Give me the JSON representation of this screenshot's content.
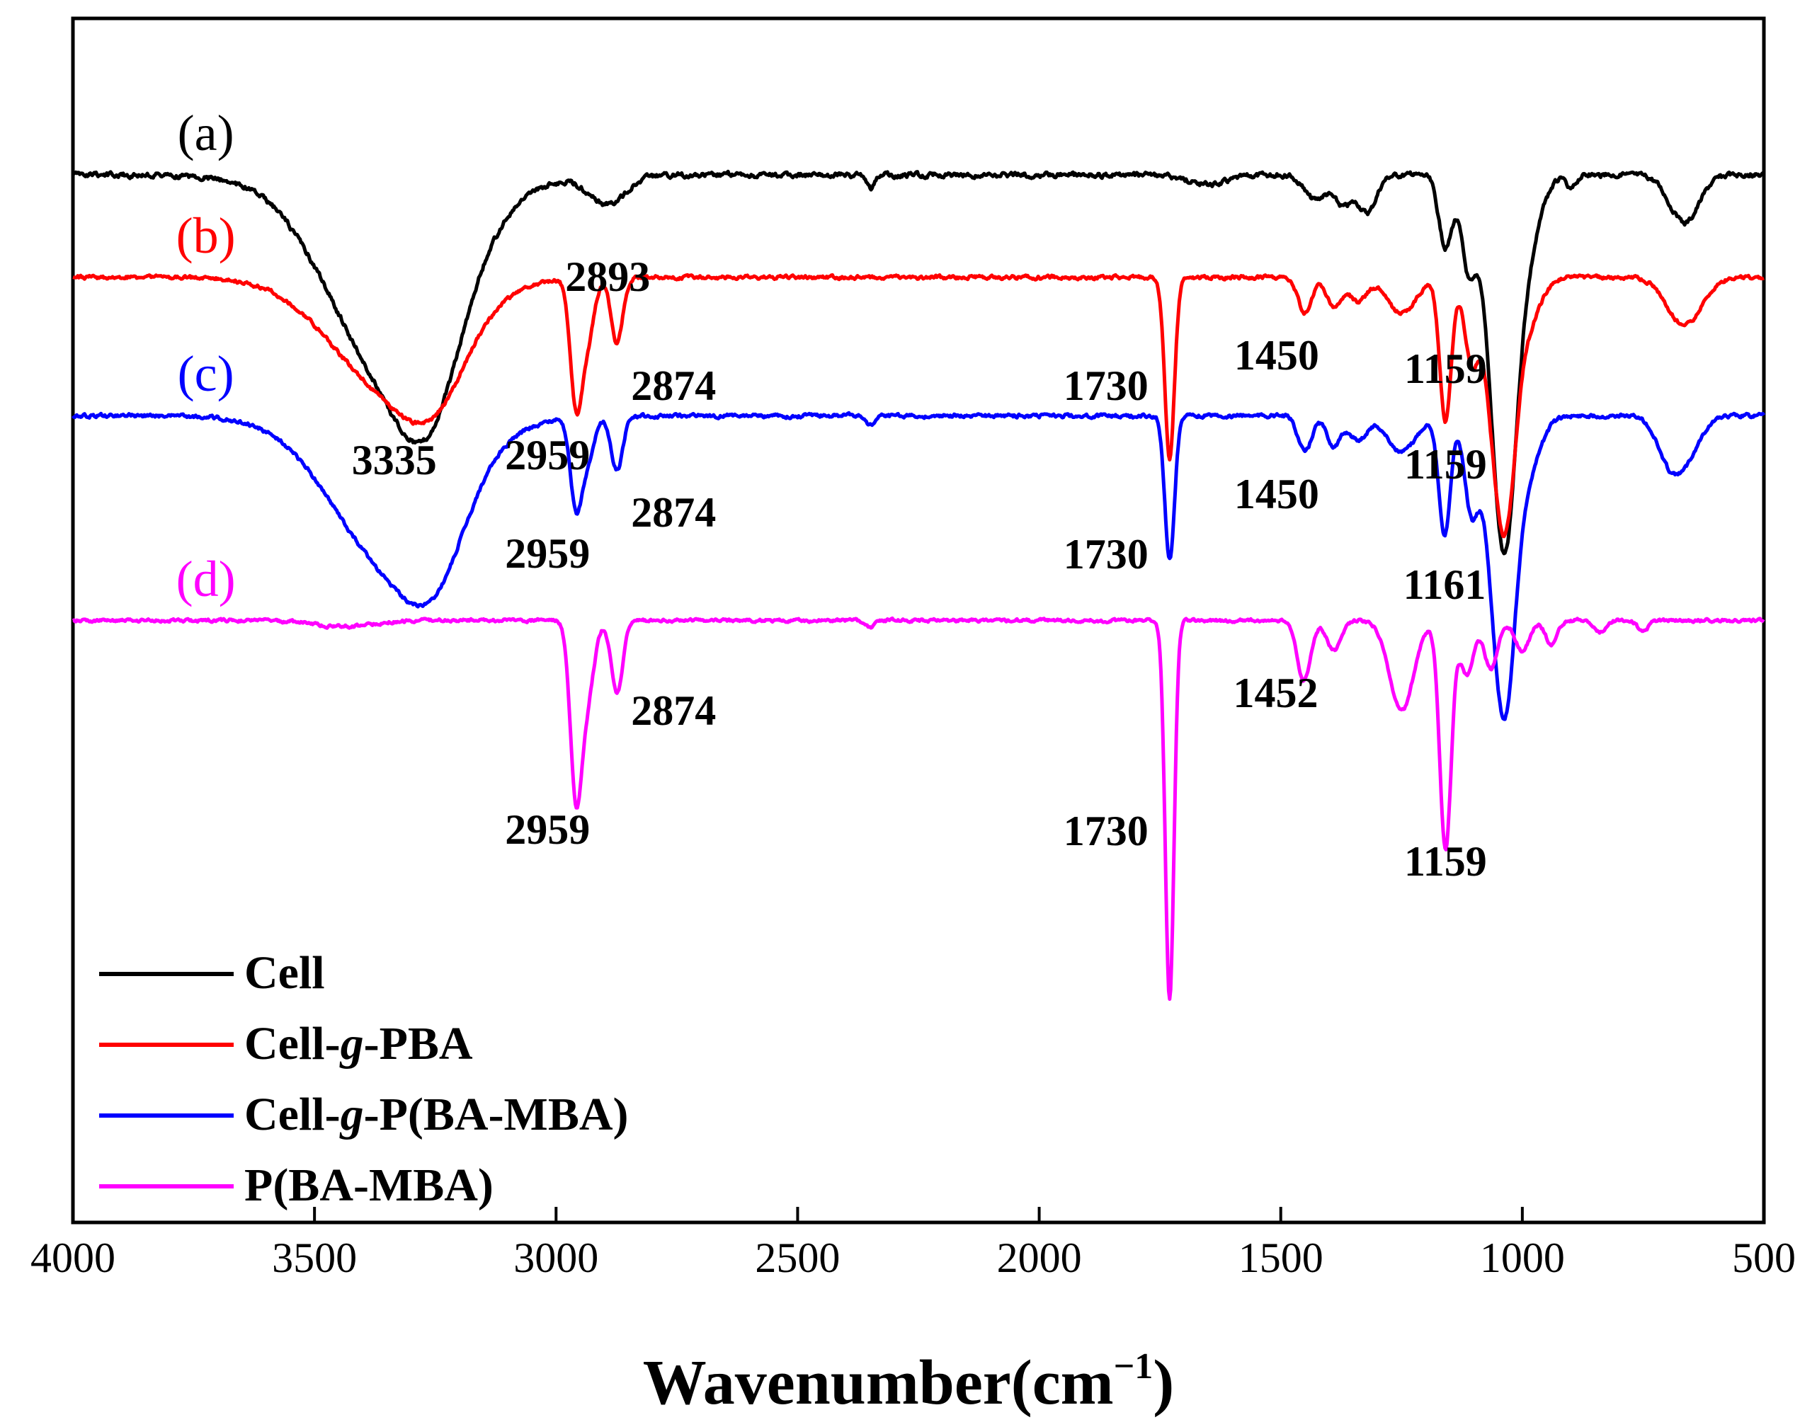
{
  "chart_data": {
    "type": "line",
    "title": "",
    "xlabel": "Wavenumber",
    "xlabel_unit": "(cm",
    "xlabel_exponent": "−1",
    "xlabel_close": ")",
    "ylabel": "",
    "xlim": [
      4000,
      500
    ],
    "x_ticks": [
      "4000",
      "3500",
      "3000",
      "2500",
      "2000",
      "1500",
      "1000",
      "500"
    ],
    "series": [
      {
        "name": "Cell",
        "panel_label": "(a)",
        "color": "#000000",
        "baseline": 0.13,
        "noise": 0.004,
        "bands": [
          {
            "x": 3335,
            "depth": 0.17,
            "width": 130
          },
          {
            "x": 3260,
            "depth": 0.07,
            "width": 60
          },
          {
            "x": 2893,
            "depth": 0.024,
            "width": 38
          },
          {
            "x": 2350,
            "depth": 0.012,
            "width": 8
          },
          {
            "x": 1650,
            "depth": 0.008,
            "width": 40
          },
          {
            "x": 1430,
            "depth": 0.02,
            "width": 22
          },
          {
            "x": 1370,
            "depth": 0.025,
            "width": 20
          },
          {
            "x": 1320,
            "depth": 0.03,
            "width": 18
          },
          {
            "x": 1159,
            "depth": 0.06,
            "width": 14
          },
          {
            "x": 1110,
            "depth": 0.08,
            "width": 16
          },
          {
            "x": 1055,
            "depth": 0.165,
            "width": 22
          },
          {
            "x": 1030,
            "depth": 0.17,
            "width": 20
          },
          {
            "x": 1000,
            "depth": 0.08,
            "width": 30
          },
          {
            "x": 900,
            "depth": 0.012,
            "width": 10
          },
          {
            "x": 665,
            "depth": 0.04,
            "width": 30
          }
        ],
        "peaks": [
          {
            "label": "3335",
            "x": 3335,
            "dy": 0.035
          },
          {
            "label": "2893",
            "x": 2893,
            "dy": 0.06
          },
          {
            "label": "1159",
            "x": 1159,
            "dy": 0.1
          }
        ]
      },
      {
        "name": "Cell-g-PBA",
        "name_parts": [
          "Cell-",
          "g",
          "-PBA"
        ],
        "panel_label": "(b)",
        "color": "#ff0000",
        "baseline": 0.215,
        "noise": 0.003,
        "bands": [
          {
            "x": 3335,
            "depth": 0.095,
            "width": 125
          },
          {
            "x": 3250,
            "depth": 0.04,
            "width": 60
          },
          {
            "x": 2959,
            "depth": 0.1,
            "width": 12
          },
          {
            "x": 2935,
            "depth": 0.05,
            "width": 14
          },
          {
            "x": 2874,
            "depth": 0.055,
            "width": 12
          },
          {
            "x": 1730,
            "depth": 0.15,
            "width": 10
          },
          {
            "x": 1450,
            "depth": 0.03,
            "width": 14
          },
          {
            "x": 1390,
            "depth": 0.025,
            "width": 15
          },
          {
            "x": 1340,
            "depth": 0.02,
            "width": 18
          },
          {
            "x": 1250,
            "depth": 0.03,
            "width": 30
          },
          {
            "x": 1159,
            "depth": 0.12,
            "width": 12
          },
          {
            "x": 1105,
            "depth": 0.07,
            "width": 15
          },
          {
            "x": 1055,
            "depth": 0.12,
            "width": 20
          },
          {
            "x": 1030,
            "depth": 0.12,
            "width": 18
          },
          {
            "x": 1000,
            "depth": 0.05,
            "width": 30
          },
          {
            "x": 665,
            "depth": 0.04,
            "width": 35
          }
        ],
        "peaks": [
          {
            "label": "2959",
            "x": 2959,
            "dy": 0.035
          },
          {
            "label": "2874",
            "x": 2874,
            "dy": 0.035
          },
          {
            "label": "1730",
            "x": 1730,
            "dy": -0.06
          },
          {
            "label": "1450",
            "x": 1450,
            "dy": 0.035
          },
          {
            "label": "1159",
            "x": 1159,
            "dy": 0.035
          }
        ]
      },
      {
        "name": "Cell-g-P(BA-MBA)",
        "name_parts": [
          "Cell-",
          "g",
          "-P(BA-MBA)"
        ],
        "panel_label": "(c)",
        "color": "#0000ff",
        "baseline": 0.33,
        "noise": 0.003,
        "bands": [
          {
            "x": 3335,
            "depth": 0.125,
            "width": 125
          },
          {
            "x": 3250,
            "depth": 0.05,
            "width": 60
          },
          {
            "x": 2959,
            "depth": 0.07,
            "width": 12
          },
          {
            "x": 2935,
            "depth": 0.035,
            "width": 14
          },
          {
            "x": 2874,
            "depth": 0.045,
            "width": 12
          },
          {
            "x": 2350,
            "depth": 0.008,
            "width": 10
          },
          {
            "x": 1730,
            "depth": 0.12,
            "width": 10
          },
          {
            "x": 1450,
            "depth": 0.03,
            "width": 14
          },
          {
            "x": 1390,
            "depth": 0.025,
            "width": 15
          },
          {
            "x": 1340,
            "depth": 0.02,
            "width": 18
          },
          {
            "x": 1250,
            "depth": 0.03,
            "width": 30
          },
          {
            "x": 1161,
            "depth": 0.1,
            "width": 12
          },
          {
            "x": 1105,
            "depth": 0.08,
            "width": 15
          },
          {
            "x": 1055,
            "depth": 0.14,
            "width": 20
          },
          {
            "x": 1030,
            "depth": 0.14,
            "width": 18
          },
          {
            "x": 1000,
            "depth": 0.06,
            "width": 30
          },
          {
            "x": 700,
            "depth": 0.025,
            "width": 25
          },
          {
            "x": 665,
            "depth": 0.035,
            "width": 30
          }
        ],
        "peaks": [
          {
            "label": "2959",
            "x": 2959,
            "dy": 0.035
          },
          {
            "label": "2874",
            "x": 2874,
            "dy": 0.035
          },
          {
            "label": "1730",
            "x": 1730,
            "dy": -0.005
          },
          {
            "label": "1450",
            "x": 1450,
            "dy": 0.035
          },
          {
            "label": "1161",
            "x": 1161,
            "dy": 0.04
          }
        ]
      },
      {
        "name": "P(BA-MBA)",
        "panel_label": "(d)",
        "color": "#ff00ff",
        "baseline": 0.5,
        "noise": 0.0025,
        "bands": [
          {
            "x": 3440,
            "depth": 0.005,
            "width": 60
          },
          {
            "x": 2959,
            "depth": 0.14,
            "width": 12
          },
          {
            "x": 2935,
            "depth": 0.06,
            "width": 14
          },
          {
            "x": 2874,
            "depth": 0.06,
            "width": 12
          },
          {
            "x": 2350,
            "depth": 0.006,
            "width": 10
          },
          {
            "x": 1730,
            "depth": 0.315,
            "width": 9
          },
          {
            "x": 1452,
            "depth": 0.05,
            "width": 14
          },
          {
            "x": 1390,
            "depth": 0.025,
            "width": 15
          },
          {
            "x": 1250,
            "depth": 0.075,
            "width": 25
          },
          {
            "x": 1159,
            "depth": 0.19,
            "width": 12
          },
          {
            "x": 1115,
            "depth": 0.045,
            "width": 14
          },
          {
            "x": 1065,
            "depth": 0.04,
            "width": 14
          },
          {
            "x": 1000,
            "depth": 0.025,
            "width": 15
          },
          {
            "x": 940,
            "depth": 0.02,
            "width": 12
          },
          {
            "x": 840,
            "depth": 0.01,
            "width": 12
          },
          {
            "x": 750,
            "depth": 0.01,
            "width": 10
          }
        ],
        "peaks": [
          {
            "label": "2874",
            "x": 2874,
            "dy": 0.015
          },
          {
            "label": "2959",
            "x": 2959,
            "dy": 0.02
          },
          {
            "label": "1730",
            "x": 1730,
            "dy": -0.14
          },
          {
            "label": "1452",
            "x": 1452,
            "dy": 0.01
          },
          {
            "label": "1159",
            "x": 1159,
            "dy": 0.01
          }
        ]
      }
    ],
    "legend": {
      "placement": "bottom-left",
      "entries": [
        {
          "parts": [
            "Cell"
          ],
          "color": "#000000"
        },
        {
          "parts": [
            "Cell-",
            "g",
            "-PBA"
          ],
          "color": "#ff0000"
        },
        {
          "parts": [
            "Cell-",
            "g",
            "-P(BA-MBA)"
          ],
          "color": "#0000ff"
        },
        {
          "parts": [
            "P(BA-MBA)"
          ],
          "color": "#ff00ff"
        }
      ]
    }
  }
}
